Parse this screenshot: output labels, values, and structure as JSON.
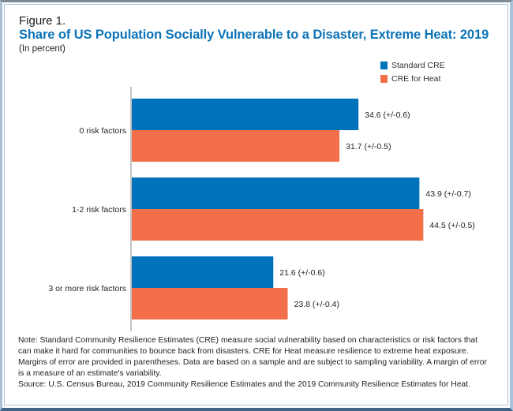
{
  "figure_label": "Figure 1.",
  "title": "Share of US Population Socially Vulnerable to a Disaster, Extreme Heat: 2019",
  "subtitle": "(In percent)",
  "legend": [
    {
      "label": "Standard CRE",
      "color": "#0072bc"
    },
    {
      "label": "CRE for Heat",
      "color": "#f26f4a"
    }
  ],
  "note": "Note: Standard Community Resilience Estimates (CRE) measure social vulnerability based on characteristics or risk factors that can make it hard for communities to bounce back from disasters. CRE for Heat measure resilience to extreme heat exposure. Margins of error are provided in parentheses. Data are based on a sample and are subject to sampling variability. A margin of error is a measure of an estimate's variability.",
  "source": "Source: U.S. Census Bureau, 2019 Community Resilience Estimates and the 2019 Community Resilience Estimates for Heat.",
  "chart_data": {
    "type": "bar",
    "orientation": "horizontal",
    "title": "Share of US Population Socially Vulnerable to a Disaster, Extreme Heat: 2019",
    "subtitle": "(In percent)",
    "xlabel": "",
    "ylabel": "",
    "xlim": [
      0,
      50
    ],
    "grid": false,
    "legend_position": "top-right",
    "categories": [
      "0 risk factors",
      "1-2 risk factors",
      "3 or more risk factors"
    ],
    "series": [
      {
        "name": "Standard CRE",
        "color": "#0072bc",
        "values": [
          34.6,
          43.9,
          21.6
        ],
        "moe": [
          0.6,
          0.7,
          0.6
        ],
        "labels": [
          "34.6 (+/-0.6)",
          "43.9 (+/-0.7)",
          "21.6 (+/-0.6)"
        ]
      },
      {
        "name": "CRE for Heat",
        "color": "#f26f4a",
        "values": [
          31.7,
          44.5,
          23.8
        ],
        "moe": [
          0.5,
          0.5,
          0.4
        ],
        "labels": [
          "31.7 (+/-0.5)",
          "44.5 (+/-0.5)",
          "23.8 (+/-0.4)"
        ]
      }
    ]
  }
}
